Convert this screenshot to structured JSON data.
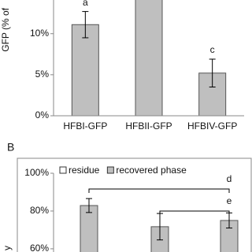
{
  "chart_data": [
    {
      "type": "bar",
      "ylabel": "GFP (% of",
      "categories": [
        "HFBI-GFP",
        "HFBII-GFP",
        "HFBIV-GFP"
      ],
      "values": [
        11.1,
        16,
        5.2
      ],
      "errors": [
        1.6,
        null,
        1.7
      ],
      "letters": [
        "a",
        null,
        "c"
      ],
      "color": "#bfbfbf",
      "ylim": [
        0,
        14.1
      ],
      "yticks": [
        {
          "value": 0,
          "label": "0%"
        },
        {
          "value": 5,
          "label": "5%"
        },
        {
          "value": 10,
          "label": "10%"
        }
      ]
    },
    {
      "type": "bar",
      "panel": "B",
      "ylabel": "y",
      "series": [
        {
          "name": "residue",
          "color": "#ffffff",
          "values": [
            null,
            null,
            null
          ]
        },
        {
          "name": "recovered phase",
          "color": "#bfbfbf",
          "values": [
            82.9,
            71.7,
            75
          ],
          "errors": [
            3.7,
            7,
            4
          ]
        }
      ],
      "brackets": [
        {
          "label": "d",
          "from": 0,
          "to": 2
        },
        {
          "label": "e",
          "from": 1,
          "to": 2
        }
      ],
      "ylim": [
        58.3,
        100
      ],
      "yticks": [
        {
          "value": 60,
          "label": "60%"
        },
        {
          "value": 80,
          "label": "80%"
        },
        {
          "value": 100,
          "label": "100%"
        }
      ]
    }
  ]
}
